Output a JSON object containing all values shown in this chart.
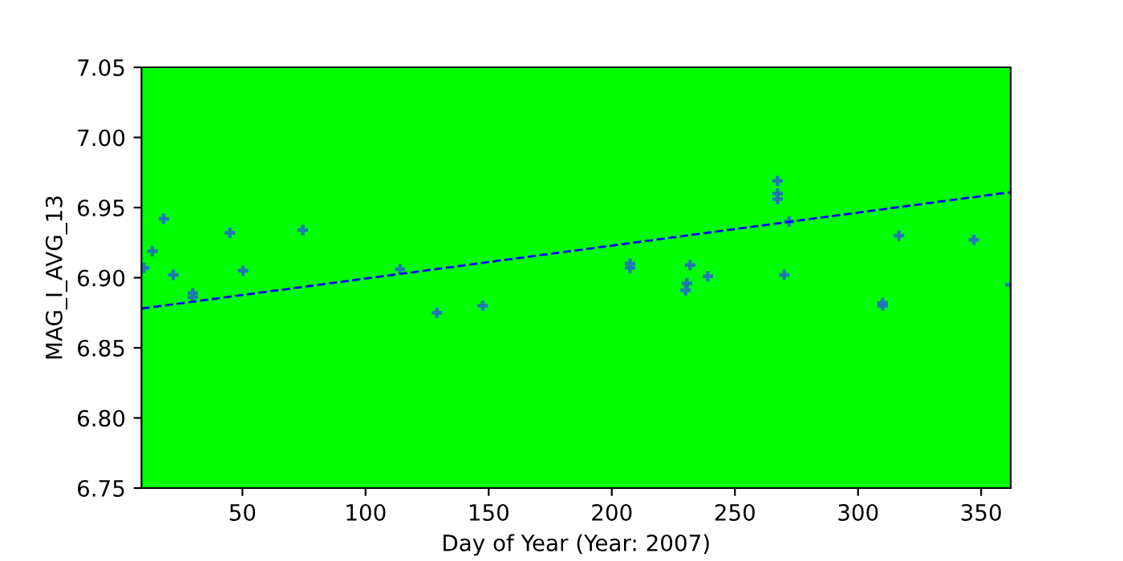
{
  "chart_data": {
    "type": "scatter",
    "xlabel": "Day of Year (Year: 2007)",
    "ylabel": "MAG_I_AVG_13",
    "xlim": [
      9,
      362
    ],
    "ylim": [
      6.75,
      7.05
    ],
    "xticks": [
      50,
      100,
      150,
      200,
      250,
      300,
      350
    ],
    "yticks": [
      {
        "value": 6.75,
        "label": "6.75"
      },
      {
        "value": 6.8,
        "label": "6.80"
      },
      {
        "value": 6.85,
        "label": "6.85"
      },
      {
        "value": 6.9,
        "label": "6.90"
      },
      {
        "value": 6.95,
        "label": "6.95"
      },
      {
        "value": 7.0,
        "label": "7.00"
      },
      {
        "value": 7.05,
        "label": "7.05"
      }
    ],
    "grid": false,
    "legend": false,
    "series": [
      {
        "color": "#1f77b4",
        "marker": "cross",
        "x": [
          10,
          13.4,
          18,
          21.9,
          29.8,
          29.8,
          44.9,
          50.2,
          74.5,
          114,
          129,
          147.6,
          207.4,
          207.4,
          231.8,
          230.5,
          230,
          239,
          267.3,
          267.3,
          267.3,
          272,
          270,
          316.6,
          347,
          310,
          310,
          362
        ],
        "values": [
          6.907,
          6.919,
          6.942,
          6.902,
          6.889,
          6.886,
          6.932,
          6.905,
          6.934,
          6.906,
          6.875,
          6.88,
          6.91,
          6.907,
          6.909,
          6.896,
          6.891,
          6.901,
          6.969,
          6.96,
          6.956,
          6.94,
          6.902,
          6.93,
          6.927,
          6.88,
          6.882,
          6.895
        ]
      },
      {
        "type": "line",
        "color": "#0000ff",
        "line_style": "dashed",
        "marker": "none",
        "x": [
          9,
          362
        ],
        "values": [
          6.878,
          6.961
        ]
      }
    ]
  }
}
